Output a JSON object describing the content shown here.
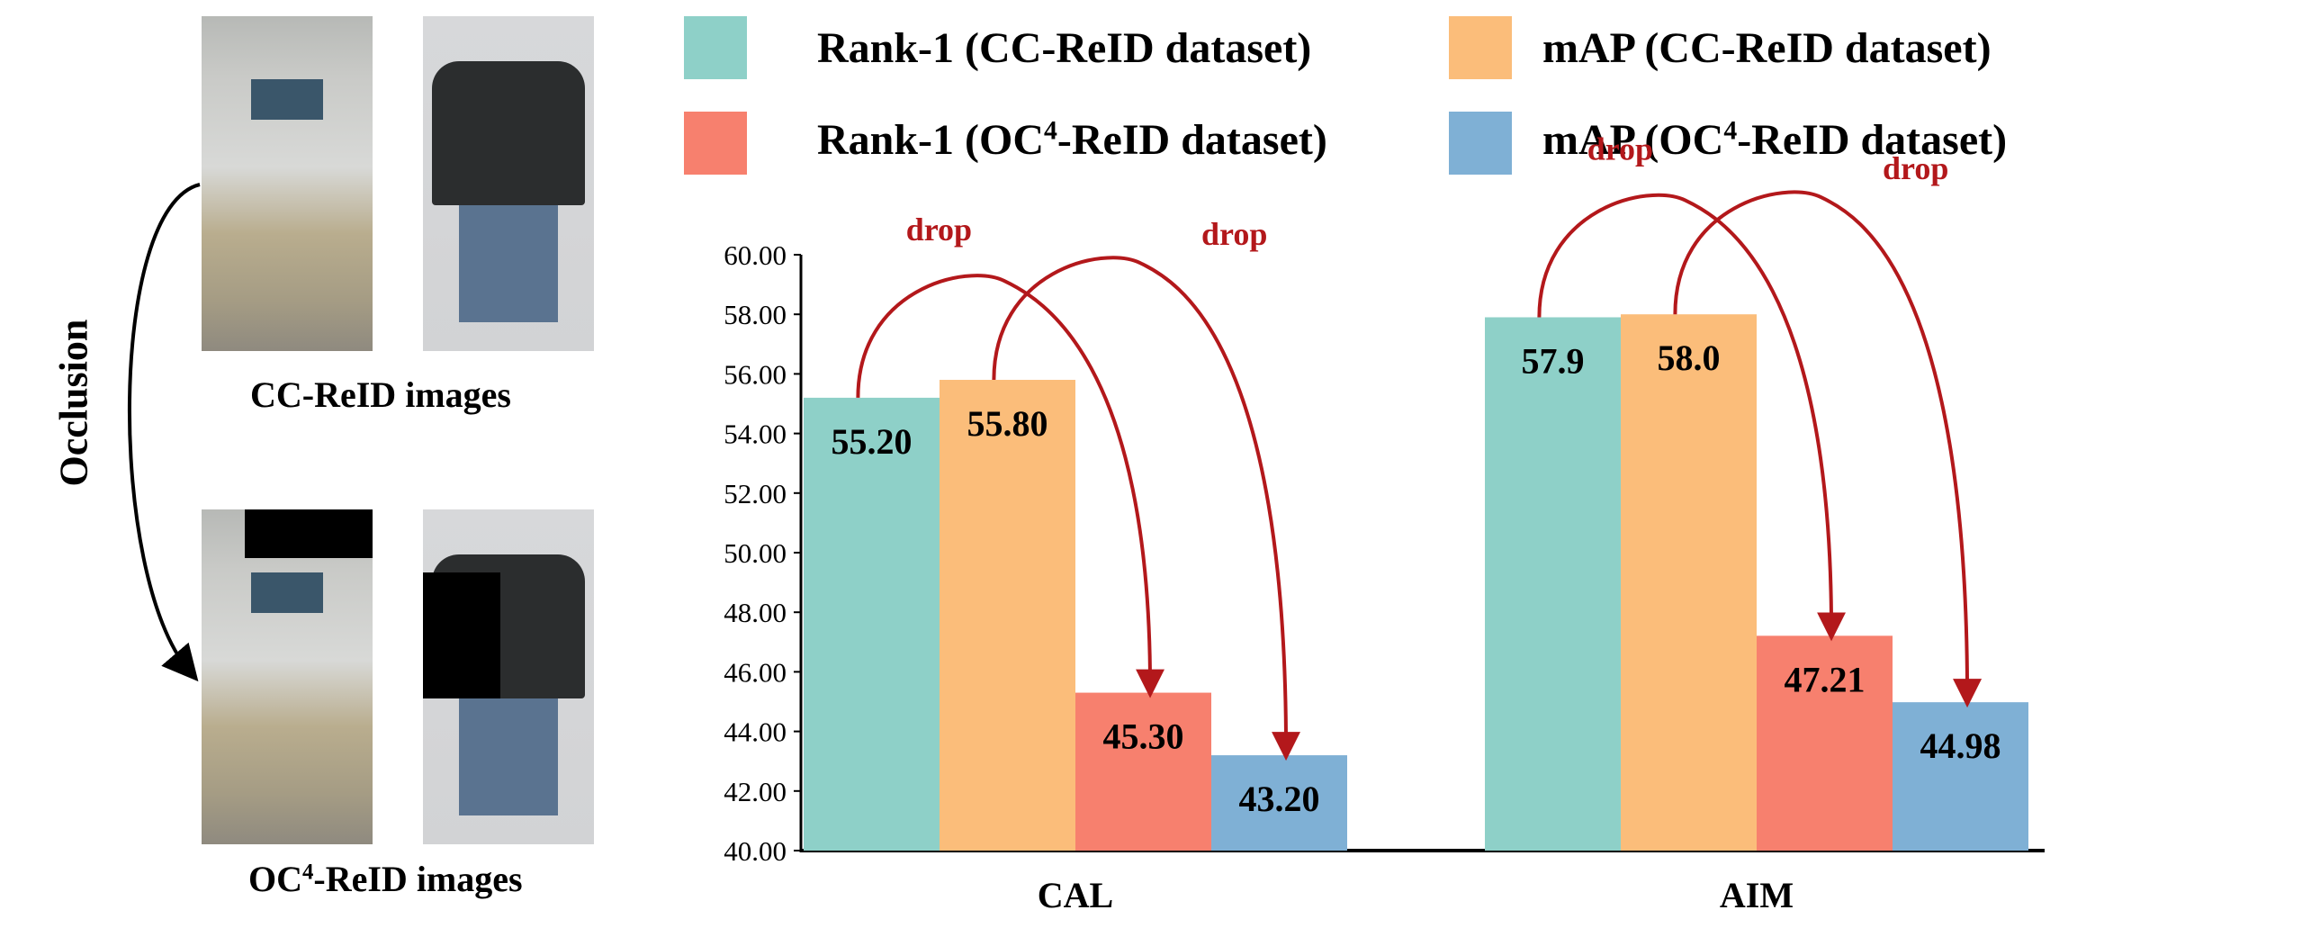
{
  "left_panel": {
    "cc_caption": "CC-ReID images",
    "oc_caption_prefix": "OC",
    "oc_caption_sup": "4",
    "oc_caption_suffix": "-ReID images",
    "arrow_label": "Occlusion"
  },
  "legend": [
    {
      "prefix": "Rank-1 (CC-ReID dataset)",
      "sup": "",
      "suffix": "",
      "color": "#8ed0c8"
    },
    {
      "prefix": "mAP (CC-ReID dataset)",
      "sup": "",
      "suffix": "",
      "color": "#fbbd7a"
    },
    {
      "prefix": "Rank-1 (OC",
      "sup": "4",
      "suffix": "-ReID dataset)",
      "color": "#f7806e"
    },
    {
      "prefix": "mAP (OC",
      "sup": "4",
      "suffix": "-ReID dataset)",
      "color": "#7fb0d5"
    }
  ],
  "chart_data": {
    "type": "bar",
    "categories": [
      "CAL",
      "AIM"
    ],
    "series": [
      {
        "name": "Rank-1 (CC-ReID dataset)",
        "values": [
          55.2,
          57.9
        ],
        "labels": [
          "55.20",
          "57.9"
        ],
        "color": "#8ed0c8"
      },
      {
        "name": "mAP (CC-ReID dataset)",
        "values": [
          55.8,
          58.0
        ],
        "labels": [
          "55.80",
          "58.0"
        ],
        "color": "#fbbd7a"
      },
      {
        "name": "Rank-1 (OC4-ReID dataset)",
        "values": [
          45.3,
          47.21
        ],
        "labels": [
          "45.30",
          "47.21"
        ],
        "color": "#f7806e"
      },
      {
        "name": "mAP (OC4-ReID dataset)",
        "values": [
          43.2,
          44.98
        ],
        "labels": [
          "43.20",
          "44.98"
        ],
        "color": "#7fb0d5"
      }
    ],
    "ylim": [
      40,
      60
    ],
    "yticks": [
      "40.00",
      "42.00",
      "44.00",
      "46.00",
      "48.00",
      "50.00",
      "52.00",
      "54.00",
      "56.00",
      "58.00",
      "60.00"
    ],
    "annotation": "drop",
    "annotation_color": "#b3181b"
  }
}
